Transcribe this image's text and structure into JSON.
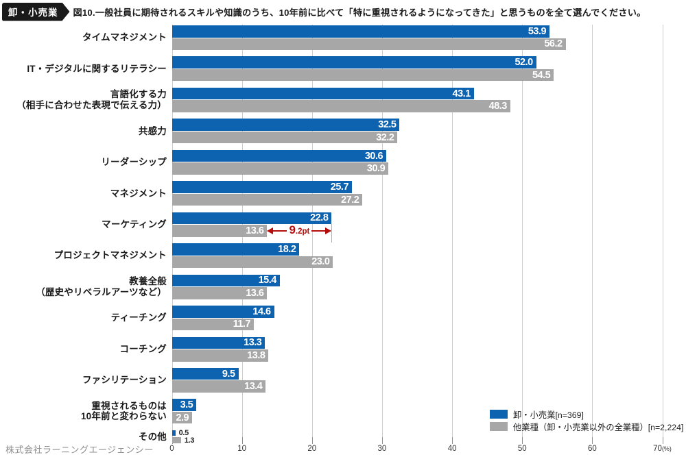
{
  "header": {
    "badge": "卸・小売業",
    "title": "図10.一般社員に期待されるスキルや知識のうち、10年前に比べて「特に重視されるようになってきた」と思うものを全て選んでください。"
  },
  "colors": {
    "bar_blue": "#0e63b0",
    "bar_gray": "#a7a7a7",
    "annotation_red": "#b50c0c",
    "gridline": "#cdcdcd",
    "badge_bg": "#1a1a1a"
  },
  "chart_data": {
    "type": "bar",
    "orientation": "horizontal",
    "title": "図10.一般社員に期待されるスキルや知識のうち、10年前に比べて「特に重視されるようになってきた」と思うものを全て選んでください。",
    "categories": [
      "タイムマネジメント",
      "IT・デジタルに関するリテラシー",
      "言語化する力\n（相手に合わせた表現で伝える力）",
      "共感力",
      "リーダーシップ",
      "マネジメント",
      "マーケティング",
      "プロジェクトマネジメント",
      "教養全般\n（歴史やリベラルアーツなど）",
      "ティーチング",
      "コーチング",
      "ファシリテーション",
      "重視されるものは\n10年前と変わらない",
      "その他"
    ],
    "series": [
      {
        "name": "卸・小売業[n=369]",
        "color": "#0e63b0",
        "values": [
          "53.9",
          "52.0",
          "43.1",
          "32.5",
          "30.6",
          "25.7",
          "22.8",
          "18.2",
          "15.4",
          "14.6",
          "13.3",
          "9.5",
          "3.5",
          "0.5"
        ]
      },
      {
        "name": "他業種（卸・小売業以外の全業種）[n=2,224]",
        "color": "#a7a7a7",
        "values": [
          "56.2",
          "54.5",
          "48.3",
          "32.2",
          "30.9",
          "27.2",
          "13.6",
          "23.0",
          "13.6",
          "11.7",
          "13.8",
          "13.4",
          "2.9",
          "1.3"
        ]
      }
    ],
    "xlim": [
      0,
      70
    ],
    "ticks": [
      "0",
      "10",
      "20",
      "30",
      "40",
      "50",
      "60",
      "70"
    ],
    "tick_unit": "(%)",
    "grid": true,
    "legend_position": "bottom-right",
    "annotation": {
      "big": "9",
      "small": ".2pt",
      "category": "マーケティング",
      "from": 13.6,
      "to": 22.8
    }
  },
  "legend": {
    "items": [
      {
        "label": "卸・小売業[n=369]"
      },
      {
        "label": "他業種（卸・小売業以外の全業種）[n=2,224]"
      }
    ]
  },
  "footer": {
    "credit": "株式会社ラーニングエージェンシー"
  }
}
